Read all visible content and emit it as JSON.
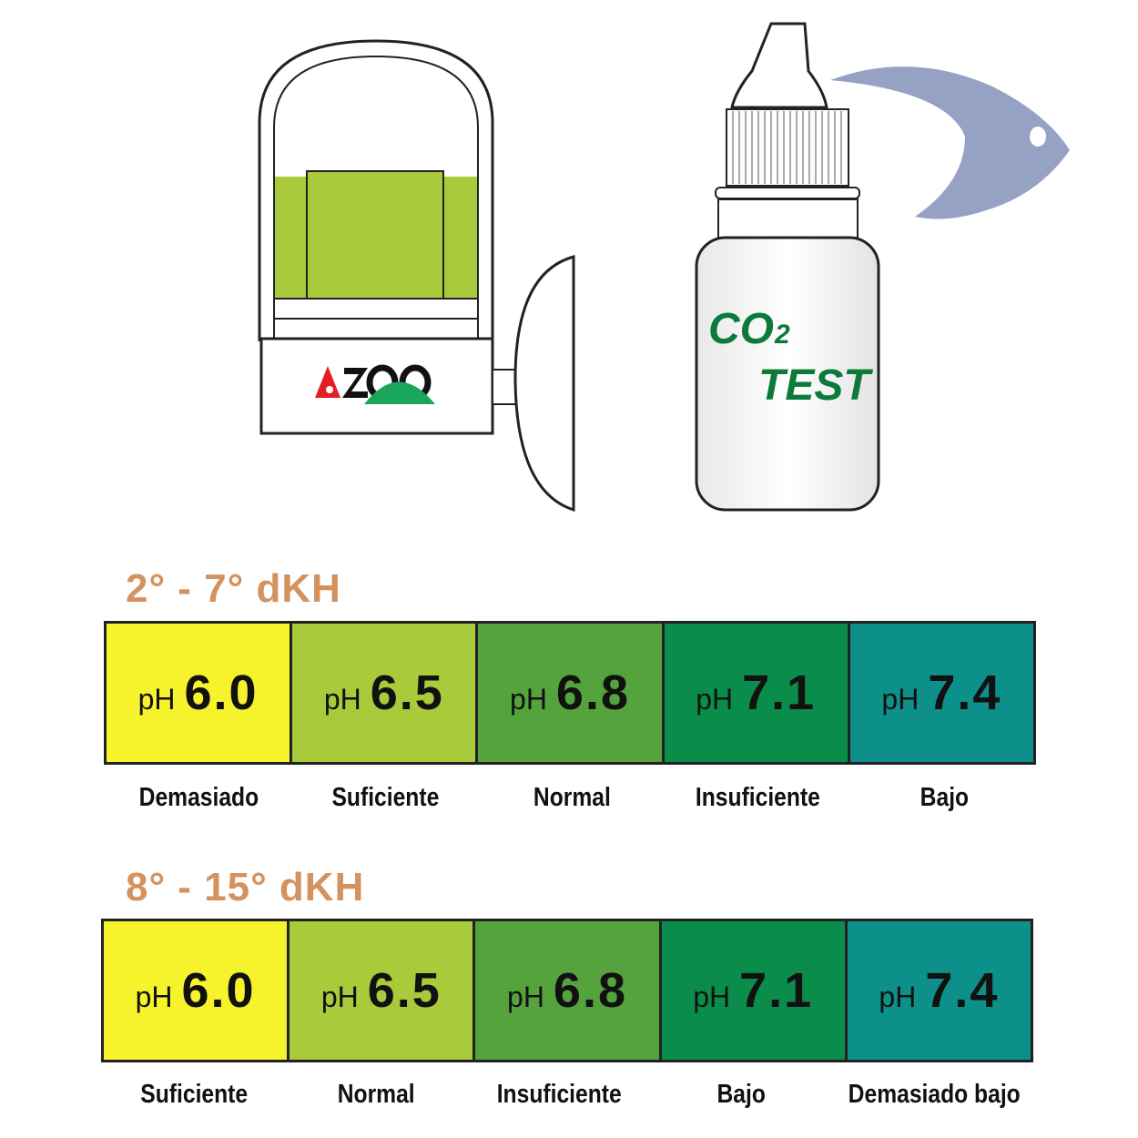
{
  "illustration": {
    "bottle_label": {
      "formula": "CO",
      "subscript": "2",
      "word": "TEST"
    }
  },
  "scales": [
    {
      "heading": "2° - 7° dKH",
      "cells": [
        {
          "prefix": "pH",
          "value": "6.0",
          "color": "#f6f22c",
          "label": "Demasiado"
        },
        {
          "prefix": "pH",
          "value": "6.5",
          "color": "#a9ca3b",
          "label": "Suficiente"
        },
        {
          "prefix": "pH",
          "value": "6.8",
          "color": "#55a33c",
          "label": "Normal"
        },
        {
          "prefix": "pH",
          "value": "7.1",
          "color": "#0a8d4b",
          "label": "Insuficiente"
        },
        {
          "prefix": "pH",
          "value": "7.4",
          "color": "#0d8f8a",
          "label": "Bajo"
        }
      ]
    },
    {
      "heading": "8° - 15° dKH",
      "cells": [
        {
          "prefix": "pH",
          "value": "6.0",
          "color": "#f6f22c",
          "label": "Suficiente"
        },
        {
          "prefix": "pH",
          "value": "6.5",
          "color": "#a9ca3b",
          "label": "Normal"
        },
        {
          "prefix": "pH",
          "value": "6.8",
          "color": "#55a33c",
          "label": "Insuficiente"
        },
        {
          "prefix": "pH",
          "value": "7.1",
          "color": "#0a8d4b",
          "label": "Bajo"
        },
        {
          "prefix": "pH",
          "value": "7.4",
          "color": "#0d8f8a",
          "label": "Demasiado bajo"
        }
      ]
    }
  ]
}
